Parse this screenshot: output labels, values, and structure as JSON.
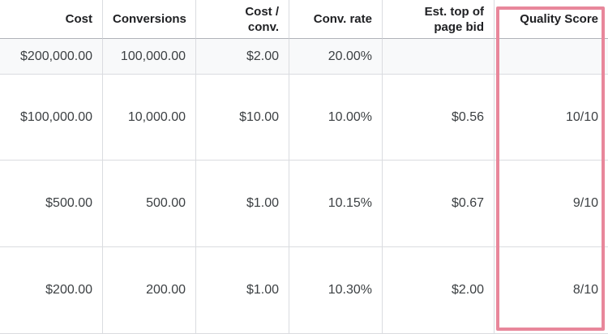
{
  "table": {
    "header": [
      "Cost",
      "Conversions",
      "Cost / conv.",
      "Conv. rate",
      "Est. top of page bid",
      "Quality Score"
    ],
    "total": [
      "$200,000.00",
      "100,000.00",
      "$2.00",
      "20.00%"
    ],
    "rows": [
      [
        "$100,000.00",
        "10,000.00",
        "$10.00",
        "10.00%",
        "$0.56",
        "10/10"
      ],
      [
        "$500.00",
        "500.00",
        "$1.00",
        "10.15%",
        "$0.67",
        "9/10"
      ],
      [
        "$200.00",
        "200.00",
        "$1.00",
        "10.30%",
        "$2.00",
        "8/10"
      ]
    ]
  }
}
